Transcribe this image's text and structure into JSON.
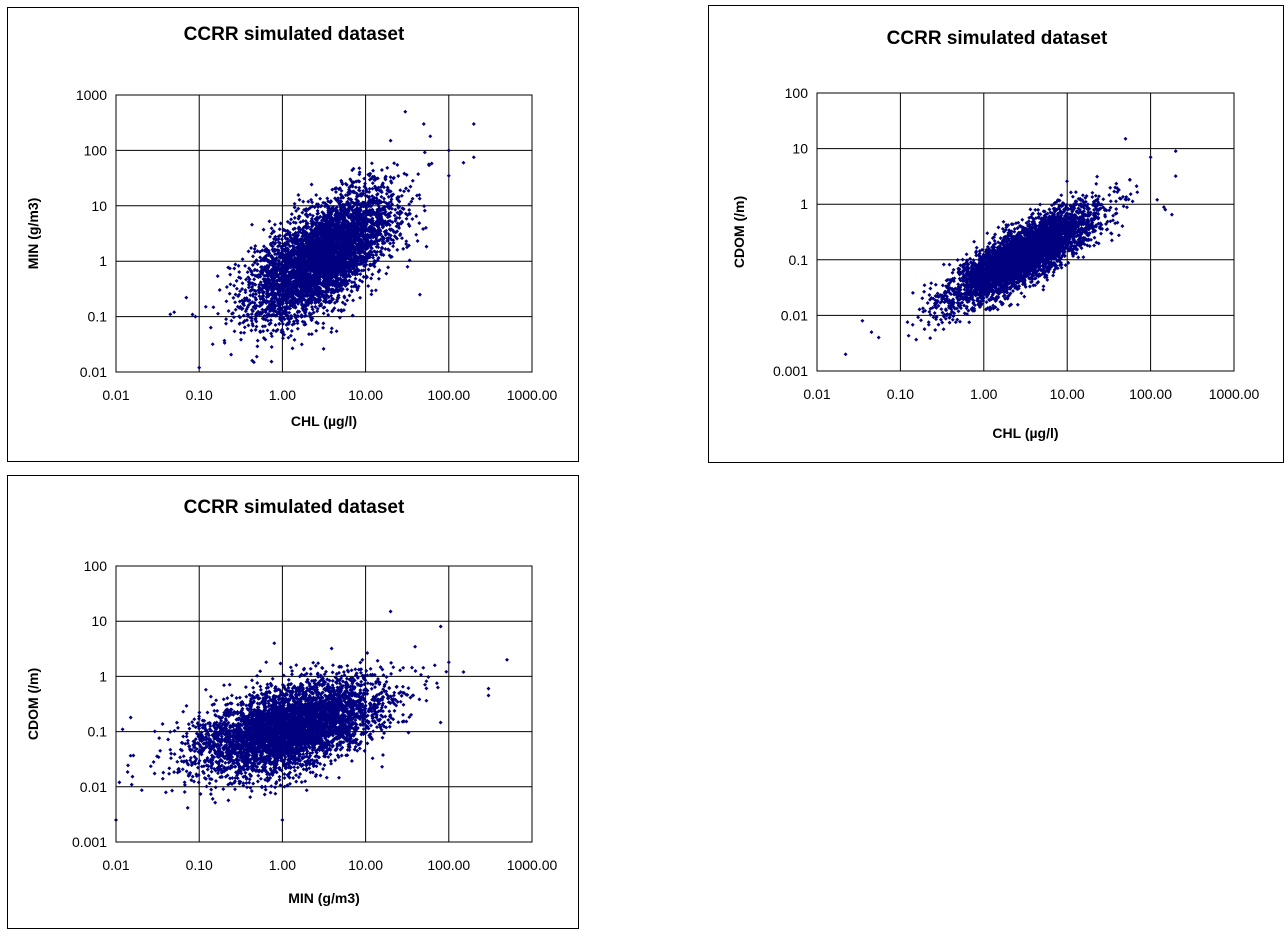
{
  "chart_data": [
    {
      "type": "scatter",
      "title": "CCRR simulated dataset",
      "xlabel": "CHL (µg/l)",
      "ylabel": "MIN (g/m3)",
      "x_scale": "log",
      "y_scale": "log",
      "xlim": [
        0.01,
        1000
      ],
      "ylim": [
        0.01,
        1000
      ],
      "x_ticks": [
        "0.01",
        "0.10",
        "1.00",
        "10.00",
        "100.00",
        "1000.00"
      ],
      "y_ticks": [
        "0.01",
        "0.1",
        "1",
        "10",
        "100",
        "1000"
      ],
      "grid": true,
      "marker_color": "#000080",
      "series_summary": {
        "center_x": 3,
        "center_y": 1.2,
        "log_sd_x": 0.42,
        "log_sd_y": 0.55,
        "correlation": 0.62,
        "n_points": 5000
      },
      "points": [
        [
          0.045,
          0.11
        ],
        [
          0.05,
          0.12
        ],
        [
          0.07,
          0.22
        ],
        [
          0.09,
          0.1
        ],
        [
          0.1,
          0.012
        ],
        [
          0.12,
          0.15
        ],
        [
          30,
          500
        ],
        [
          50,
          300
        ],
        [
          200,
          300
        ],
        [
          100,
          100
        ],
        [
          200,
          75
        ],
        [
          150,
          60
        ],
        [
          100,
          35
        ],
        [
          20,
          150
        ],
        [
          60,
          180
        ],
        [
          45,
          0.25
        ]
      ]
    },
    {
      "type": "scatter",
      "title": "CCRR simulated dataset",
      "xlabel": "CHL (µg/l)",
      "ylabel": "CDOM (/m)",
      "x_scale": "log",
      "y_scale": "log",
      "xlim": [
        0.01,
        1000
      ],
      "ylim": [
        0.001,
        100
      ],
      "x_ticks": [
        "0.01",
        "0.10",
        "1.00",
        "10.00",
        "100.00",
        "1000.00"
      ],
      "y_ticks": [
        "0.001",
        "0.01",
        "0.1",
        "1",
        "10",
        "100"
      ],
      "grid": true,
      "marker_color": "#000080",
      "series_summary": {
        "center_x": 3,
        "center_y": 0.12,
        "log_sd_x": 0.42,
        "log_sd_y": 0.42,
        "correlation": 0.82,
        "n_points": 5000
      },
      "points": [
        [
          0.022,
          0.002
        ],
        [
          0.035,
          0.008
        ],
        [
          0.045,
          0.005
        ],
        [
          0.055,
          0.004
        ],
        [
          50,
          15
        ],
        [
          100,
          7
        ],
        [
          200,
          9
        ],
        [
          200,
          3.2
        ],
        [
          150,
          0.8
        ],
        [
          180,
          0.65
        ],
        [
          120,
          1.2
        ]
      ]
    },
    {
      "type": "scatter",
      "title": "CCRR simulated dataset",
      "xlabel": "MIN (g/m3)",
      "ylabel": "CDOM (/m)",
      "x_scale": "log",
      "y_scale": "log",
      "xlim": [
        0.01,
        1000
      ],
      "ylim": [
        0.001,
        100
      ],
      "x_ticks": [
        "0.01",
        "0.10",
        "1.00",
        "10.00",
        "100.00",
        "1000.00"
      ],
      "y_ticks": [
        "0.001",
        "0.01",
        "0.1",
        "1",
        "10",
        "100"
      ],
      "grid": true,
      "marker_color": "#000080",
      "series_summary": {
        "center_x": 1.2,
        "center_y": 0.12,
        "log_sd_x": 0.55,
        "log_sd_y": 0.42,
        "correlation": 0.5,
        "n_points": 5000
      },
      "points": [
        [
          0.01,
          0.0025
        ],
        [
          0.012,
          0.11
        ],
        [
          0.011,
          0.012
        ],
        [
          0.015,
          0.18
        ],
        [
          500,
          2
        ],
        [
          300,
          0.6
        ],
        [
          300,
          0.45
        ],
        [
          80,
          8
        ],
        [
          20,
          15
        ],
        [
          100,
          1.8
        ],
        [
          150,
          1.2
        ],
        [
          0.8,
          4
        ],
        [
          1,
          0.0025
        ]
      ]
    }
  ]
}
